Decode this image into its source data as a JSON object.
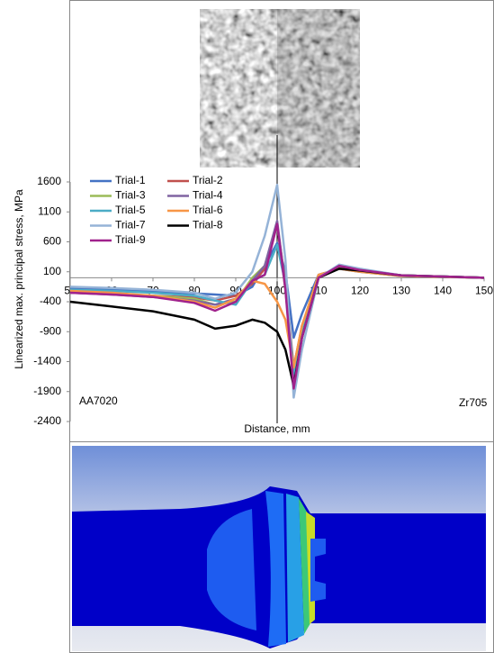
{
  "chart_data": {
    "type": "line",
    "xlabel": "Distance, mm",
    "ylabel": "Linearized max. principal stress, MPa",
    "annotations": [
      "AA7020",
      "Zr705"
    ],
    "x": [
      50,
      60,
      70,
      80,
      85,
      90,
      94,
      97,
      100,
      102,
      104,
      106,
      110,
      115,
      120,
      130,
      150
    ],
    "xlim": [
      50,
      150
    ],
    "xticks": [
      50,
      60,
      70,
      80,
      90,
      100,
      110,
      120,
      130,
      140,
      150
    ],
    "ylim": [
      -2400,
      1600
    ],
    "yticks": [
      1600,
      1100,
      600,
      100,
      -400,
      -900,
      -1400,
      -1900,
      -2400
    ],
    "series": [
      {
        "name": "Trial-1",
        "color": "#4472c4",
        "values": [
          -180,
          -200,
          -230,
          -260,
          -280,
          -300,
          -150,
          200,
          580,
          100,
          -1000,
          -600,
          50,
          150,
          100,
          30,
          0
        ]
      },
      {
        "name": "Trial-2",
        "color": "#c0504d",
        "values": [
          -250,
          -270,
          -300,
          -330,
          -380,
          -300,
          -100,
          150,
          900,
          -100,
          -1500,
          -800,
          0,
          180,
          120,
          40,
          0
        ]
      },
      {
        "name": "Trial-3",
        "color": "#9bbb59",
        "values": [
          -250,
          -270,
          -300,
          -350,
          -450,
          -400,
          0,
          200,
          900,
          -200,
          -1600,
          -900,
          0,
          200,
          130,
          40,
          0
        ]
      },
      {
        "name": "Trial-4",
        "color": "#8064a2",
        "values": [
          -250,
          -280,
          -320,
          -380,
          -450,
          -350,
          -50,
          200,
          950,
          -150,
          -1700,
          -900,
          0,
          200,
          130,
          40,
          0
        ]
      },
      {
        "name": "Trial-5",
        "color": "#4bacc6",
        "values": [
          -200,
          -220,
          -250,
          -300,
          -380,
          -450,
          -50,
          50,
          550,
          -100,
          -1600,
          -900,
          0,
          200,
          130,
          40,
          0
        ]
      },
      {
        "name": "Trial-6",
        "color": "#f79646",
        "values": [
          -220,
          -250,
          -300,
          -400,
          -500,
          -350,
          -50,
          -100,
          -400,
          -700,
          -1500,
          -800,
          50,
          150,
          100,
          30,
          0
        ]
      },
      {
        "name": "Trial-7",
        "color": "#95b3d7",
        "values": [
          -150,
          -170,
          -200,
          -250,
          -350,
          -250,
          100,
          700,
          1550,
          300,
          -2000,
          -1200,
          0,
          220,
          150,
          40,
          0
        ]
      },
      {
        "name": "Trial-8",
        "color": "#000000",
        "values": [
          -400,
          -480,
          -560,
          -700,
          -850,
          -800,
          -700,
          -750,
          -900,
          -1200,
          -1800,
          -1000,
          0,
          150,
          120,
          40,
          0
        ]
      },
      {
        "name": "Trial-9",
        "color": "#a0228c",
        "values": [
          -250,
          -280,
          -320,
          -420,
          -550,
          -400,
          -50,
          50,
          900,
          -200,
          -1850,
          -1000,
          0,
          200,
          130,
          40,
          0
        ]
      }
    ]
  }
}
